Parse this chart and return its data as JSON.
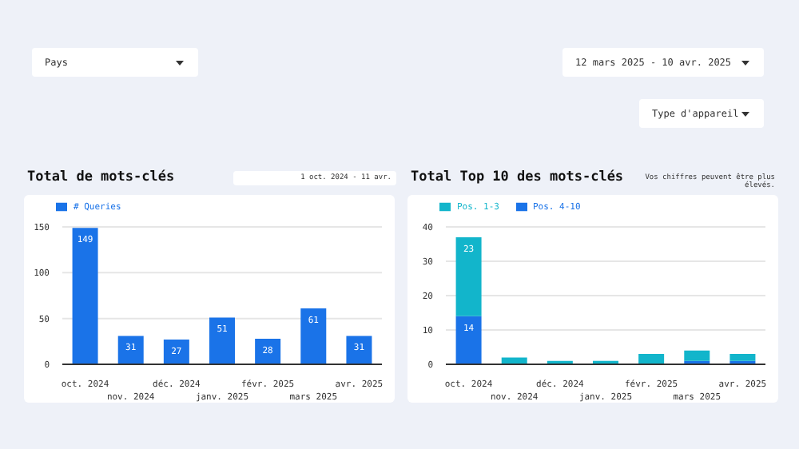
{
  "chart_data": [
    {
      "type": "other",
      "annotations": [
        "Pays",
        "12 mars 2025 - 10 avr. 2025",
        "Type d'appareil"
      ]
    },
    {
      "type": "bar",
      "title": "Total de mots-clés",
      "annotations": [
        "1 oct. 2024 - 11 avr."
      ],
      "categories": [
        "oct. 2024",
        "nov. 2024",
        "déc. 2024",
        "janv. 2025",
        "févr. 2025",
        "mars 2025",
        "avr. 2025"
      ],
      "series": [
        {
          "name": "# Queries",
          "color": "#1a73e8",
          "values": [
            149,
            31,
            27,
            51,
            28,
            61,
            31
          ]
        }
      ],
      "ylim": [
        0,
        150
      ],
      "yticks": [
        0,
        50,
        100,
        150
      ],
      "grid": "y",
      "legend": "top left",
      "data_labels": true
    },
    {
      "type": "bar",
      "title": "Total Top 10 des mots-clés",
      "annotations": [
        "Vos chiffres peuvent être plus élevés."
      ],
      "categories": [
        "oct. 2024",
        "nov. 2024",
        "déc. 2024",
        "janv. 2025",
        "févr. 2025",
        "mars 2025",
        "avr. 2025"
      ],
      "stacked": true,
      "series": [
        {
          "name": "Pos. 4-10",
          "color": "#1a73e8",
          "values": [
            14,
            0,
            0,
            0,
            0,
            1,
            1
          ],
          "value_labels": [
            "14",
            null,
            null,
            null,
            null,
            null,
            null
          ]
        },
        {
          "name": "Pos. 1-3",
          "color": "#12b5cb",
          "values": [
            23,
            2,
            1,
            1,
            3,
            3,
            2
          ],
          "value_labels": [
            "23",
            null,
            null,
            null,
            null,
            null,
            null
          ]
        }
      ],
      "ylim": [
        0,
        40
      ],
      "yticks": [
        0,
        10,
        20,
        30,
        40
      ],
      "grid": "y",
      "legend": "top left"
    }
  ]
}
